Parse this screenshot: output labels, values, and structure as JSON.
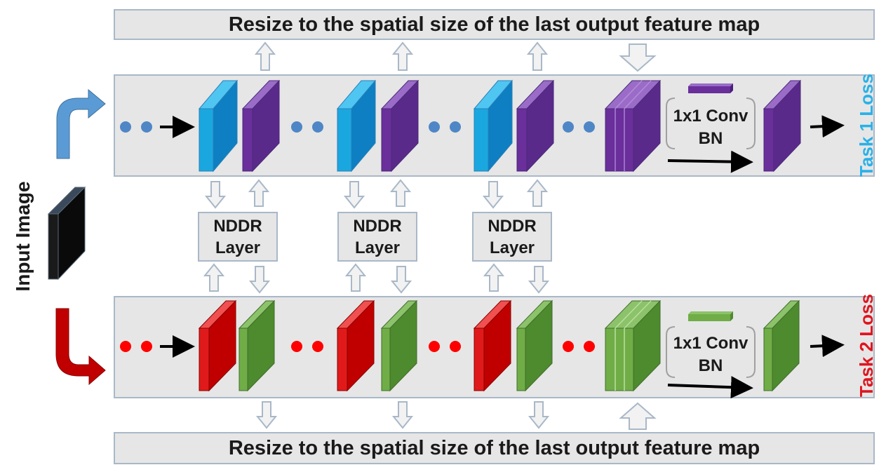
{
  "diagram": {
    "top_banner": "Resize to the spatial size of the last output feature map",
    "bottom_banner": "Resize to the spatial size of the last output feature map",
    "input_label": "Input Image",
    "task1_label": "Task 1 Loss",
    "task2_label": "Task 2 Loss",
    "nddr_line1": [
      "NDDR",
      "NDDR",
      "NDDR"
    ],
    "nddr_line2": [
      "Layer",
      "Layer",
      "Layer"
    ],
    "conv_top": {
      "line1": "1x1 Conv",
      "line2": "BN"
    },
    "conv_bottom": {
      "line1": "1x1 Conv",
      "line2": "BN"
    }
  },
  "colors": {
    "panel_fill": "#e6e6e6",
    "panel_border": "#a9b8c8",
    "task1_blue": "#1aa7e0",
    "task1_purple": "#6a2f9a",
    "task2_red": "#e01a1a",
    "task2_green": "#5e9c3a",
    "task1_label": "#29b1e8",
    "task2_label": "#e0141e",
    "input_arrow_blue": "#5b9bd5",
    "input_arrow_red": "#c00000"
  }
}
